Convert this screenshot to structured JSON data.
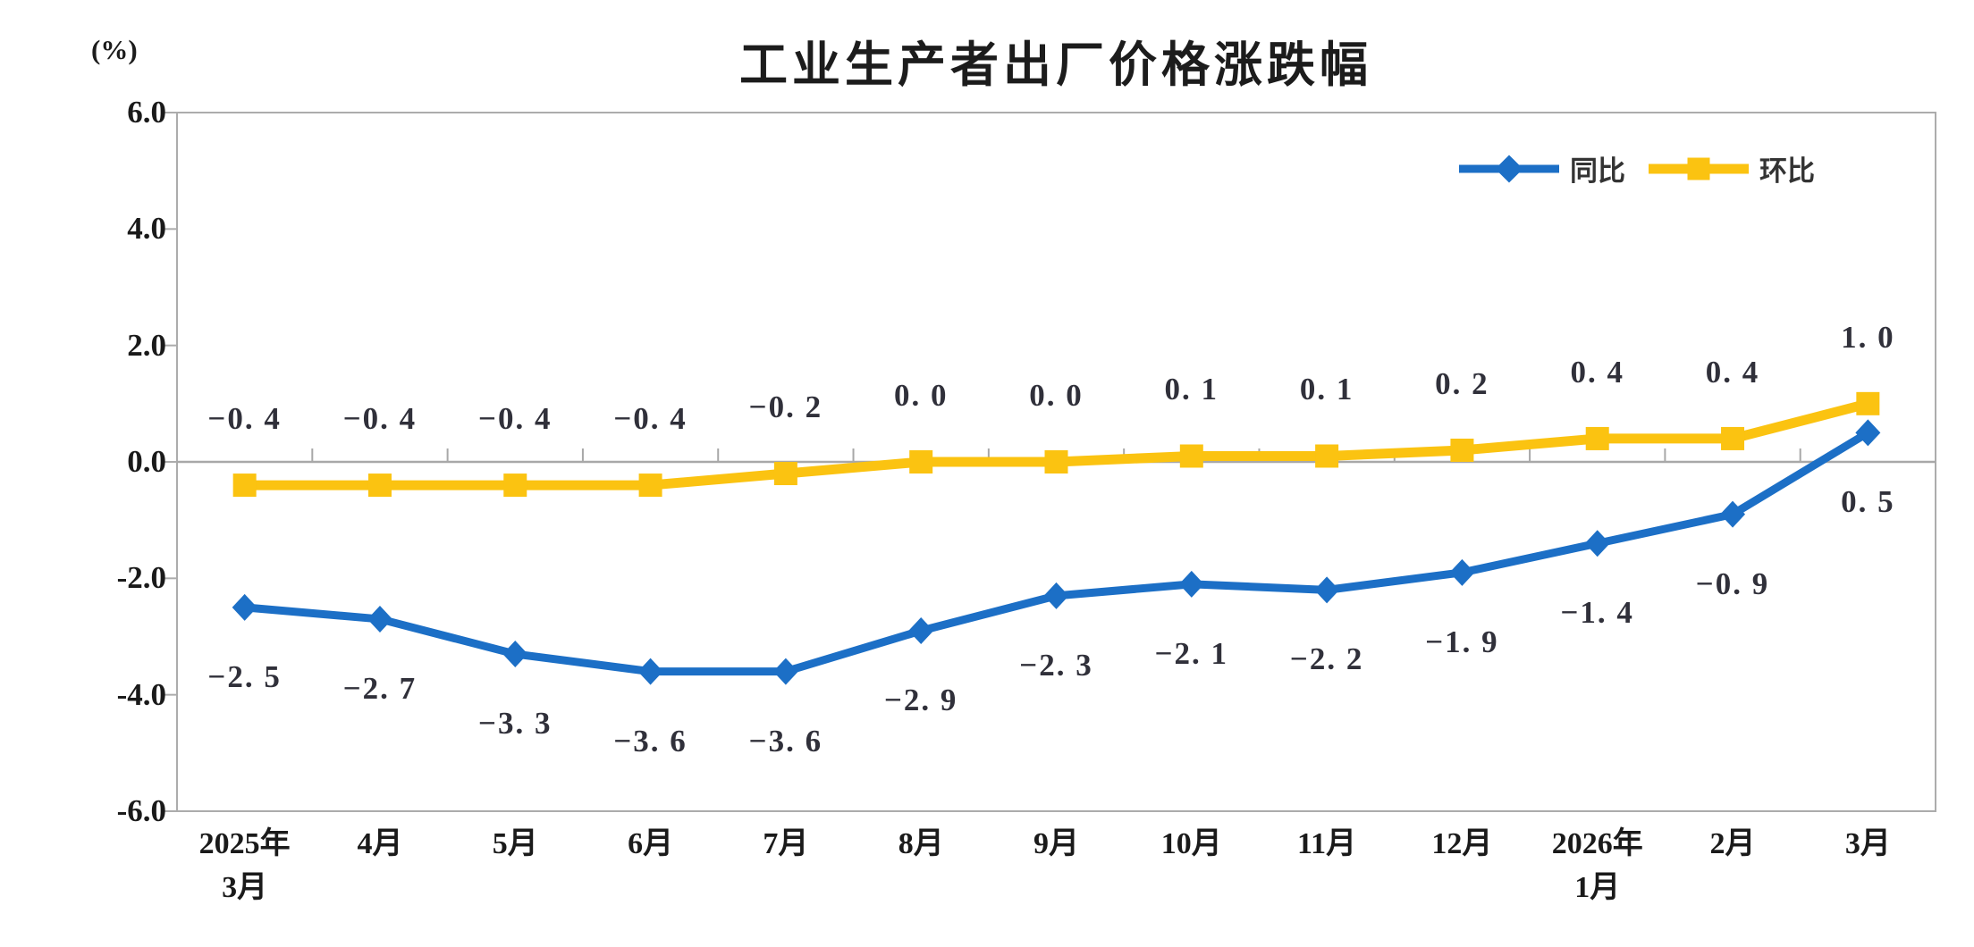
{
  "title": "工业生产者出厂价格涨跌幅",
  "y_unit_label": "(%)",
  "legend": {
    "position": "top-right",
    "items": [
      {
        "label": "同比",
        "marker": "diamond",
        "color": "#1C6FC6"
      },
      {
        "label": "环比",
        "marker": "square",
        "color": "#FBC311"
      }
    ]
  },
  "chart_data": {
    "type": "line",
    "title": "工业生产者出厂价格涨跌幅",
    "ylabel": "(%)",
    "ylim": [
      -6.0,
      6.0
    ],
    "ytick_step": 2.0,
    "ytick_labels": [
      "6.0",
      "4.0",
      "2.0",
      "0.0",
      "-2.0",
      "-4.0",
      "-6.0"
    ],
    "grid": false,
    "legend_position": "top-right",
    "categories": [
      "2025年3月",
      "4月",
      "5月",
      "6月",
      "7月",
      "8月",
      "9月",
      "10月",
      "11月",
      "12月",
      "2026年1月",
      "2月",
      "3月"
    ],
    "categories_lines": [
      [
        "2025年",
        "3月"
      ],
      [
        "4月"
      ],
      [
        "5月"
      ],
      [
        "6月"
      ],
      [
        "7月"
      ],
      [
        "8月"
      ],
      [
        "9月"
      ],
      [
        "10月"
      ],
      [
        "11月"
      ],
      [
        "12月"
      ],
      [
        "2026年",
        "1月"
      ],
      [
        "2月"
      ],
      [
        "3月"
      ]
    ],
    "series": [
      {
        "name": "同比",
        "color": "#1C6FC6",
        "marker": "diamond",
        "line_width": 9,
        "label_position": "below",
        "values": [
          -2.5,
          -2.7,
          -3.3,
          -3.6,
          -3.6,
          -2.9,
          -2.3,
          -2.1,
          -2.2,
          -1.9,
          -1.4,
          -0.9,
          0.5
        ]
      },
      {
        "name": "环比",
        "color": "#FBC311",
        "marker": "square",
        "line_width": 11,
        "label_position": "above",
        "values": [
          -0.4,
          -0.4,
          -0.4,
          -0.4,
          -0.2,
          0.0,
          0.0,
          0.1,
          0.1,
          0.2,
          0.4,
          0.4,
          1.0
        ]
      }
    ]
  },
  "colors": {
    "background": "#FFFFFF",
    "plot_border": "#ACACAC",
    "zero_line": "#A8A8A8",
    "axis_text": "#1A1A1A",
    "data_label_text": "#30303A",
    "series_yoy": "#1C6FC6",
    "series_mom": "#FBC311"
  }
}
